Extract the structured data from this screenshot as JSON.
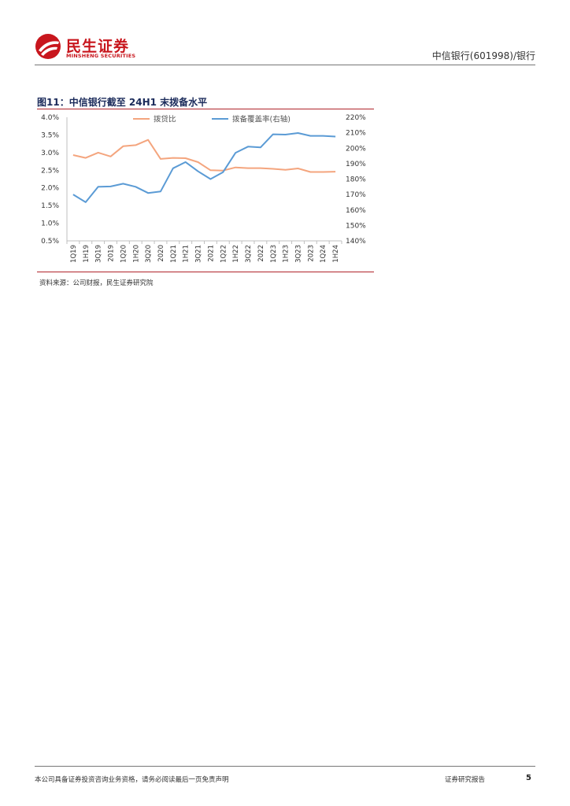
{
  "header": {
    "logo_cn": "民生证券",
    "logo_en": "MINSHENG SECURITIES",
    "right_text": "中信银行(601998)/银行"
  },
  "figure": {
    "title": "图11：中信银行截至 24H1 末拨备水平",
    "source": "资料来源：公司财报，民生证券研究院"
  },
  "chart_data": {
    "type": "line",
    "categories": [
      "1Q19",
      "1H19",
      "3Q19",
      "2019",
      "1Q20",
      "1H20",
      "3Q20",
      "2020",
      "1Q21",
      "1H21",
      "3Q21",
      "2021",
      "1Q22",
      "1H22",
      "3Q22",
      "2022",
      "1Q23",
      "1H23",
      "3Q23",
      "2023",
      "1Q24",
      "1H24"
    ],
    "series": [
      {
        "name": "拨贷比",
        "axis": "left",
        "color": "#f4a57e",
        "values": [
          2.93,
          2.85,
          3.0,
          2.89,
          3.18,
          3.21,
          3.36,
          2.82,
          2.85,
          2.84,
          2.73,
          2.5,
          2.49,
          2.58,
          2.56,
          2.56,
          2.54,
          2.51,
          2.55,
          2.45,
          2.45,
          2.46
        ]
      },
      {
        "name": "拨备覆盖率(右轴)",
        "axis": "right",
        "color": "#5b9bd5",
        "values": [
          170.0,
          165.0,
          175.0,
          175.2,
          177.0,
          175.0,
          171.0,
          172.0,
          187.0,
          191.0,
          185.0,
          180.0,
          184.5,
          197.0,
          201.0,
          200.5,
          209.0,
          208.8,
          209.8,
          208.0,
          208.0,
          207.5
        ]
      }
    ],
    "left_axis": {
      "min": 0.5,
      "max": 4.0,
      "ticks": [
        "0.5%",
        "1.0%",
        "1.5%",
        "2.0%",
        "2.5%",
        "3.0%",
        "3.5%",
        "4.0%"
      ]
    },
    "right_axis": {
      "min": 140,
      "max": 220,
      "ticks": [
        "140%",
        "150%",
        "160%",
        "170%",
        "180%",
        "190%",
        "200%",
        "210%",
        "220%"
      ]
    },
    "legend_position": "top",
    "grid": false
  },
  "footer": {
    "disclaimer": "本公司具备证券投资咨询业务资格，请务必阅读最后一页免责声明",
    "report_type": "证券研究报告",
    "page": "5"
  }
}
